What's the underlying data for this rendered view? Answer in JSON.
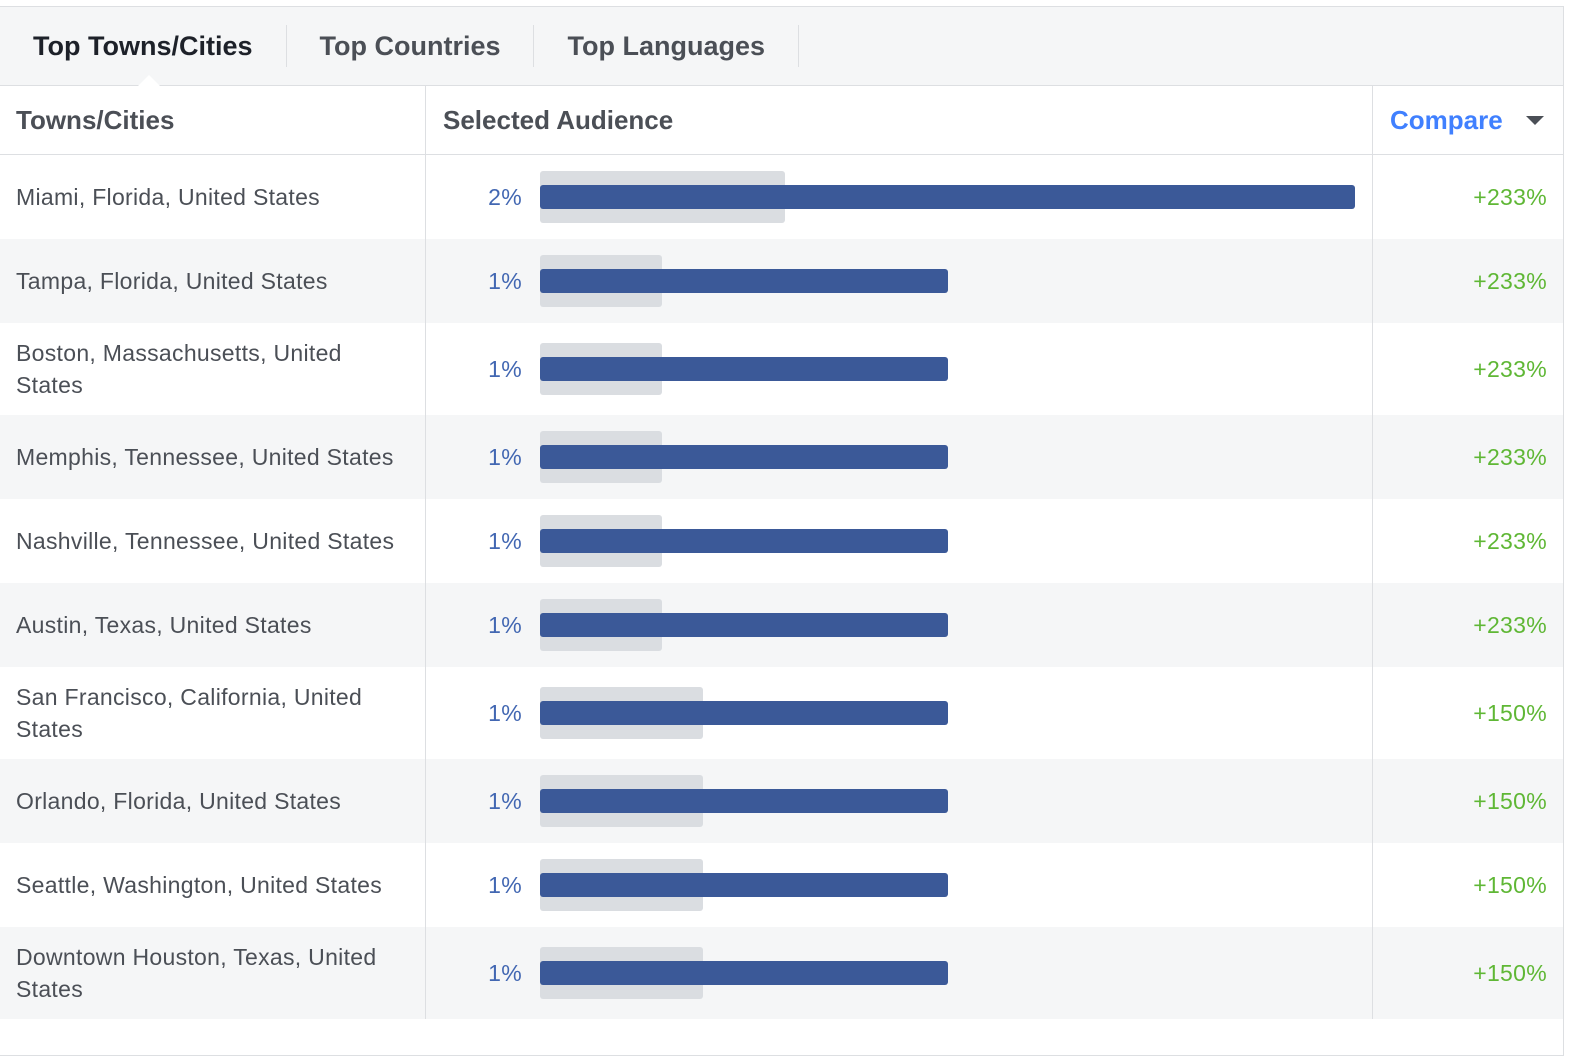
{
  "tabs": [
    "Top Towns/Cities",
    "Top Countries",
    "Top Languages"
  ],
  "table": {
    "columns": [
      "Towns/Cities",
      "Selected Audience",
      "Compare"
    ],
    "rows": [
      {
        "city": "Miami, Florida, United States",
        "value": 2,
        "value_label": "2%",
        "compare": 233,
        "compare_label": "+233%"
      },
      {
        "city": "Tampa, Florida, United States",
        "value": 1,
        "value_label": "1%",
        "compare": 233,
        "compare_label": "+233%"
      },
      {
        "city": "Boston, Massachusetts, United States",
        "value": 1,
        "value_label": "1%",
        "compare": 233,
        "compare_label": "+233%"
      },
      {
        "city": "Memphis, Tennessee, United States",
        "value": 1,
        "value_label": "1%",
        "compare": 233,
        "compare_label": "+233%"
      },
      {
        "city": "Nashville, Tennessee, United States",
        "value": 1,
        "value_label": "1%",
        "compare": 233,
        "compare_label": "+233%"
      },
      {
        "city": "Austin, Texas, United States",
        "value": 1,
        "value_label": "1%",
        "compare": 233,
        "compare_label": "+233%"
      },
      {
        "city": "San Francisco, California, United States",
        "value": 1,
        "value_label": "1%",
        "compare": 150,
        "compare_label": "+150%"
      },
      {
        "city": "Orlando, Florida, United States",
        "value": 1,
        "value_label": "1%",
        "compare": 150,
        "compare_label": "+150%"
      },
      {
        "city": "Seattle, Washington, United States",
        "value": 1,
        "value_label": "1%",
        "compare": 150,
        "compare_label": "+150%"
      },
      {
        "city": "Downtown Houston, Texas, United States",
        "value": 1,
        "value_label": "1%",
        "compare": 150,
        "compare_label": "+150%"
      }
    ]
  }
}
